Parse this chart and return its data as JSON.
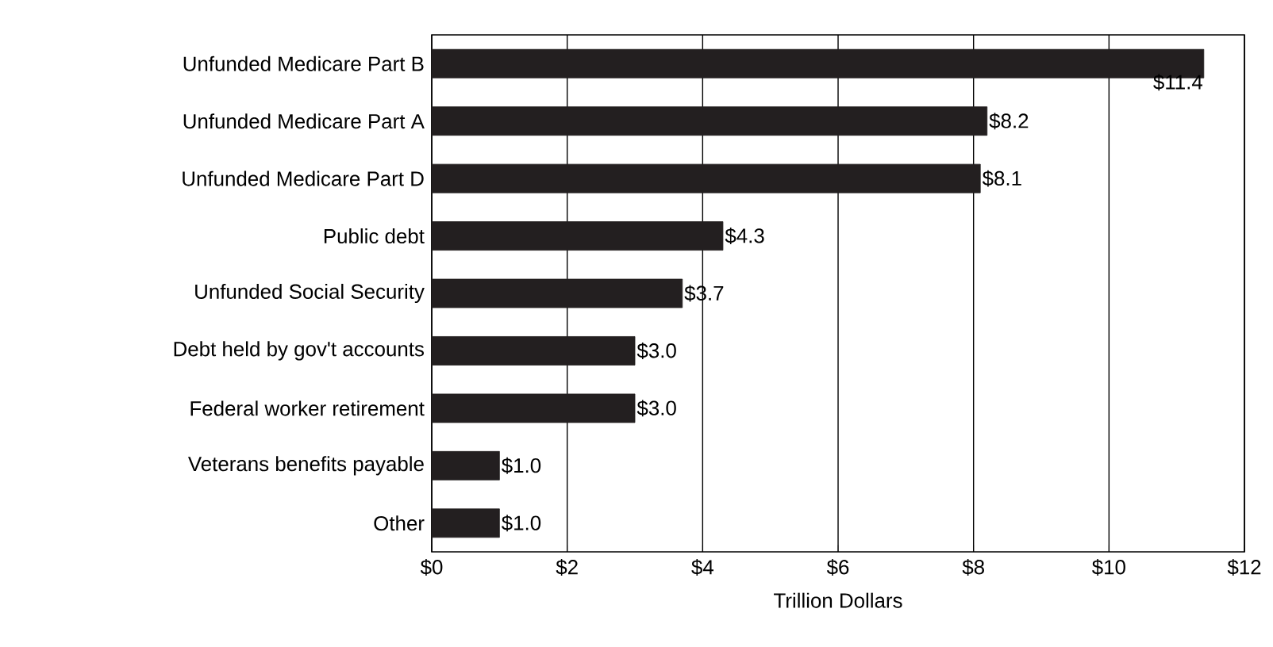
{
  "chart_data": {
    "type": "bar",
    "orientation": "horizontal",
    "xlabel": "Trillion Dollars",
    "categories": [
      "Unfunded Medicare Part B",
      "Unfunded Medicare Part A",
      "Unfunded Medicare Part D",
      "Public debt",
      "Unfunded Social Security",
      "Debt held by gov't accounts",
      "Federal worker retirement",
      "Veterans benefits payable",
      "Other"
    ],
    "values": [
      11.4,
      8.2,
      8.1,
      4.3,
      3.7,
      3.0,
      3.0,
      1.0,
      1.0
    ],
    "value_labels": [
      "$11.4",
      "$8.2",
      "$8.1",
      "$4.3",
      "$3.7",
      "$3.0",
      "$3.0",
      "$1.0",
      "$1.0"
    ],
    "color": "#231f20",
    "xlim": [
      0,
      12
    ],
    "xticks": [
      {
        "value": 0,
        "label": "$0"
      },
      {
        "value": 2,
        "label": "$2"
      },
      {
        "value": 4,
        "label": "$4"
      },
      {
        "value": 6,
        "label": "$6"
      },
      {
        "value": 8,
        "label": "$8"
      },
      {
        "value": 10,
        "label": "$10"
      },
      {
        "value": 12,
        "label": "$12"
      }
    ],
    "grid": "x"
  }
}
